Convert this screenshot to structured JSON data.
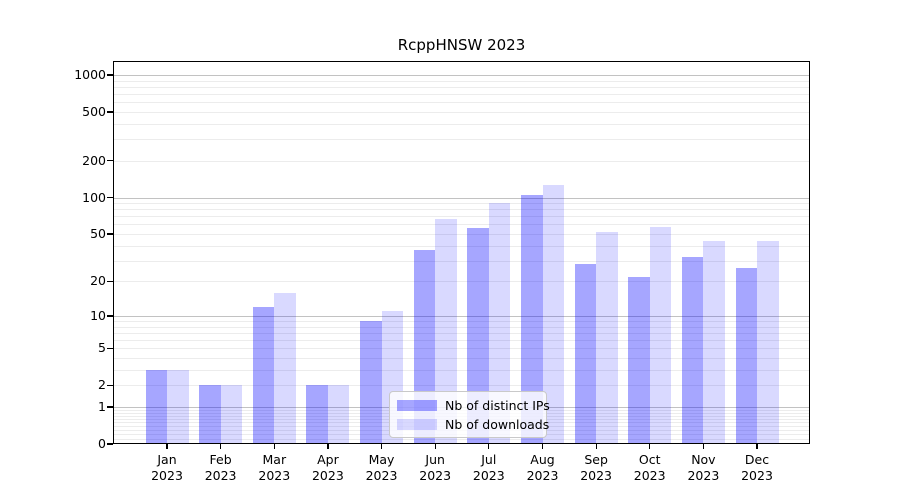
{
  "chart_data": {
    "type": "bar",
    "title": "RcppHNSW 2023",
    "categories": [
      {
        "month": "Jan",
        "year": "2023"
      },
      {
        "month": "Feb",
        "year": "2023"
      },
      {
        "month": "Mar",
        "year": "2023"
      },
      {
        "month": "Apr",
        "year": "2023"
      },
      {
        "month": "May",
        "year": "2023"
      },
      {
        "month": "Jun",
        "year": "2023"
      },
      {
        "month": "Jul",
        "year": "2023"
      },
      {
        "month": "Aug",
        "year": "2023"
      },
      {
        "month": "Sep",
        "year": "2023"
      },
      {
        "month": "Oct",
        "year": "2023"
      },
      {
        "month": "Nov",
        "year": "2023"
      },
      {
        "month": "Dec",
        "year": "2023"
      }
    ],
    "series": [
      {
        "name": "Nb of distinct IPs",
        "color": "rgba(0,0,255,0.35)",
        "values": [
          3,
          2,
          12,
          2,
          9,
          37,
          56,
          105,
          28,
          22,
          32,
          26
        ]
      },
      {
        "name": "Nb of downloads",
        "color": "rgba(0,0,255,0.15)",
        "values": [
          3,
          2,
          16,
          2,
          11,
          66,
          91,
          127,
          52,
          57,
          44,
          44
        ]
      }
    ],
    "xlabel": "",
    "ylabel": "",
    "y_scale": "log1p",
    "ylim": [
      0,
      1300
    ],
    "y_ticks": [
      0,
      1,
      2,
      5,
      10,
      20,
      50,
      100,
      200,
      500,
      1000
    ],
    "y_tick_labels": [
      "0",
      "1",
      "2",
      "5",
      "10",
      "20",
      "50",
      "100",
      "200",
      "500",
      "1000"
    ],
    "y_major_gridlines": [
      1,
      10,
      100,
      1000
    ],
    "grid": "on",
    "legend_position": "inside-bottom-center"
  }
}
